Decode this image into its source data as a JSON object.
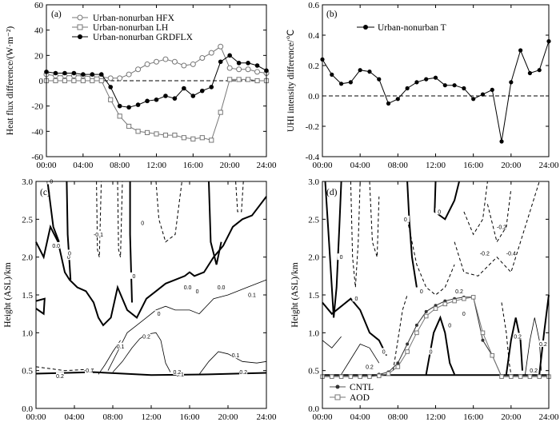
{
  "chart_data": [
    {
      "panel_label": "(a)",
      "type": "line",
      "ylabel": "Heat flux difference/(W·m⁻²)",
      "xlim": [
        0,
        24
      ],
      "ylim": [
        -60,
        60
      ],
      "yticks": [
        -60,
        -40,
        -20,
        0,
        20,
        40,
        60
      ],
      "xticks": [
        "00:00",
        "04:00",
        "08:00",
        "12:00",
        "16:00",
        "20:00",
        "24:00"
      ],
      "zero_line": "dashed",
      "legend": "top-left",
      "series": [
        {
          "name": "Urban-nonurban HFX",
          "marker": "open-circle",
          "x": [
            0,
            1,
            2,
            3,
            4,
            5,
            6,
            7,
            8,
            9,
            10,
            11,
            12,
            13,
            14,
            15,
            16,
            17,
            18,
            19,
            20,
            21,
            22,
            23,
            24
          ],
          "y": [
            5,
            4,
            4,
            4,
            4,
            3,
            3,
            2,
            2,
            5,
            9,
            13,
            15,
            17,
            15,
            12,
            13,
            18,
            22,
            27,
            10,
            9,
            9,
            7,
            6
          ]
        },
        {
          "name": "Urban-nonurban LH",
          "marker": "open-square",
          "x": [
            0,
            1,
            2,
            3,
            4,
            5,
            6,
            7,
            8,
            9,
            10,
            11,
            12,
            13,
            14,
            15,
            16,
            17,
            18,
            19,
            20,
            21,
            22,
            23,
            24
          ],
          "y": [
            0,
            0,
            0,
            0,
            0,
            0,
            0,
            -15,
            -28,
            -36,
            -40,
            -41,
            -42,
            -43,
            -43,
            -45,
            -46,
            -45,
            -47,
            -25,
            1,
            1,
            1,
            0,
            0
          ]
        },
        {
          "name": "Urban-nonurban GRDFLX",
          "marker": "filled-circle",
          "x": [
            0,
            1,
            2,
            3,
            4,
            5,
            6,
            7,
            8,
            9,
            10,
            11,
            12,
            13,
            14,
            15,
            16,
            17,
            18,
            19,
            20,
            21,
            22,
            23,
            24
          ],
          "y": [
            7,
            6,
            6,
            6,
            5,
            5,
            5,
            -5,
            -20,
            -21,
            -19,
            -16,
            -15,
            -12,
            -14,
            -6,
            -12,
            -8,
            -5,
            15,
            20,
            14,
            14,
            12,
            8
          ]
        }
      ]
    },
    {
      "panel_label": "(b)",
      "type": "line",
      "ylabel": "UHI intensity difference/℃",
      "xlim": [
        0,
        24
      ],
      "ylim": [
        -0.4,
        0.6
      ],
      "yticks": [
        -0.4,
        -0.2,
        0.0,
        0.2,
        0.4,
        0.6
      ],
      "xticks": [
        "00:00",
        "04:00",
        "08:00",
        "12:00",
        "16:00",
        "20:00",
        "24:00"
      ],
      "zero_line": "dashed",
      "legend": "top-left",
      "series": [
        {
          "name": "Urban-nonurban T",
          "marker": "filled-circle",
          "x": [
            0,
            1,
            2,
            3,
            4,
            5,
            6,
            7,
            8,
            9,
            10,
            11,
            12,
            13,
            14,
            15,
            16,
            17,
            18,
            19,
            20,
            21,
            22,
            23,
            24
          ],
          "y": [
            0.24,
            0.14,
            0.08,
            0.09,
            0.17,
            0.16,
            0.11,
            -0.05,
            -0.02,
            0.05,
            0.09,
            0.11,
            0.12,
            0.07,
            0.07,
            0.05,
            -0.02,
            0.01,
            0.04,
            -0.3,
            0.09,
            0.3,
            0.15,
            0.17,
            0.36
          ]
        }
      ]
    },
    {
      "panel_label": "(c)",
      "type": "contour",
      "ylabel": "Height (ASL)/km",
      "xlim": [
        0,
        24
      ],
      "ylim": [
        0.0,
        3.0
      ],
      "yticks": [
        "0.0",
        "0.5",
        "1.0",
        "1.5",
        "2.0",
        "2.5",
        "3.0"
      ],
      "xticks": [
        "00:00",
        "04:00",
        "08:00",
        "12:00",
        "16:00",
        "20:00",
        "24:00"
      ],
      "contour_labels": [
        "0.0",
        "0",
        "0",
        "0",
        "0",
        "0",
        "0.0",
        "0.0",
        "0",
        "-0.1",
        "0",
        "0.1",
        "0.2",
        "0.1",
        "0.1",
        "0.1",
        "0.2",
        "0.2",
        "-0.1",
        "0.2"
      ],
      "zero_level": "0.0"
    },
    {
      "panel_label": "(d)",
      "type": "contour",
      "ylabel": "Height (ASL)/km",
      "xlim": [
        0,
        24
      ],
      "ylim": [
        0.0,
        3.0
      ],
      "yticks": [
        "0.0",
        "0.5",
        "1.0",
        "1.5",
        "2.0",
        "2.5",
        "3.0"
      ],
      "xticks": [
        "00:00",
        "04:00",
        "08:00",
        "12:00",
        "16:00",
        "20:00",
        "24:00"
      ],
      "contour_labels": [
        "-0.2",
        "-0.2",
        "-0.4",
        "0",
        "0",
        "0",
        "0",
        "0",
        "0",
        "0",
        "0",
        "0.2",
        "0",
        "0.2",
        "0.2",
        "0.2",
        "0.2"
      ],
      "legend": "bottom-left",
      "series": [
        {
          "name": "CNTL",
          "marker": "filled-circle",
          "x": [
            0,
            1,
            2,
            3,
            4,
            5,
            6,
            7,
            8,
            9,
            10,
            11,
            12,
            13,
            14,
            15,
            16,
            17,
            18,
            19,
            20,
            21,
            22,
            23,
            24
          ],
          "y": [
            0.42,
            0.42,
            0.42,
            0.42,
            0.42,
            0.42,
            0.45,
            0.48,
            0.6,
            0.85,
            1.1,
            1.28,
            1.36,
            1.42,
            1.45,
            1.47,
            1.47,
            0.9,
            0.7,
            0.42,
            0.42,
            0.42,
            0.42,
            0.42,
            0.42
          ]
        },
        {
          "name": "AOD",
          "marker": "open-square",
          "x": [
            0,
            1,
            2,
            3,
            4,
            5,
            6,
            7,
            8,
            9,
            10,
            11,
            12,
            13,
            14,
            15,
            16,
            17,
            18,
            19,
            20,
            21,
            22,
            23,
            24
          ],
          "y": [
            0.42,
            0.42,
            0.42,
            0.42,
            0.42,
            0.42,
            0.43,
            0.46,
            0.55,
            0.75,
            1.0,
            1.22,
            1.32,
            1.38,
            1.42,
            1.45,
            1.47,
            1.0,
            0.7,
            0.42,
            0.42,
            0.42,
            0.42,
            0.42,
            0.42
          ]
        }
      ]
    }
  ]
}
